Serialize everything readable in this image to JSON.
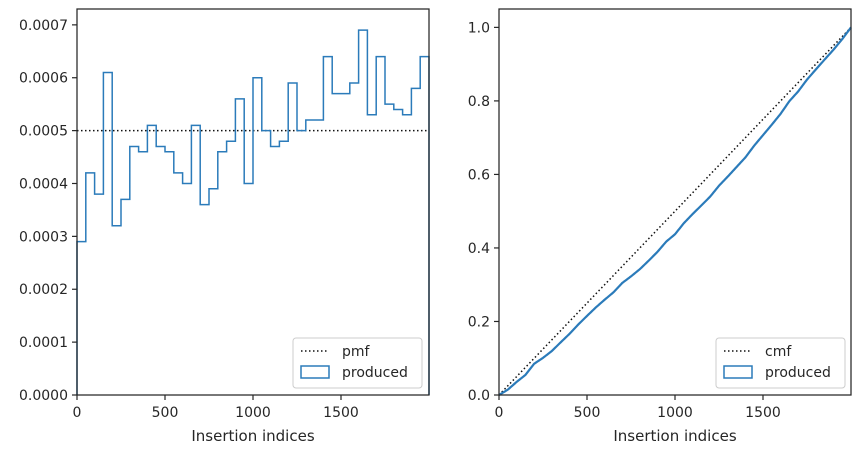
{
  "chart_data": [
    {
      "type": "histogram-step",
      "xlabel": "Insertion indices",
      "ylabel": "",
      "xlim": [
        0,
        2000
      ],
      "ylim": [
        0,
        0.00073
      ],
      "x_ticks": [
        0,
        500,
        1000,
        1500
      ],
      "y_ticks": [
        0,
        0.0001,
        0.0002,
        0.0003,
        0.0004,
        0.0005,
        0.0006,
        0.0007
      ],
      "y_tick_labels": [
        "0.0000",
        "0.0001",
        "0.0002",
        "0.0003",
        "0.0004",
        "0.0005",
        "0.0006",
        "0.0007"
      ],
      "bin_width": 50,
      "series": [
        {
          "name": "produced",
          "style": "step",
          "color": "#2b7bba",
          "bin_edges_start": 0,
          "values": [
            0.00029,
            0.00042,
            0.00038,
            0.00061,
            0.00032,
            0.00037,
            0.00047,
            0.00046,
            0.00051,
            0.00047,
            0.00046,
            0.00042,
            0.0004,
            0.00051,
            0.00036,
            0.00039,
            0.00046,
            0.00048,
            0.00056,
            0.0004,
            0.0006,
            0.0005,
            0.00047,
            0.00048,
            0.00059,
            0.0005,
            0.00052,
            0.00052,
            0.00064,
            0.00057,
            0.00057,
            0.00059,
            0.00069,
            0.00053,
            0.00064,
            0.00055,
            0.00054,
            0.00053,
            0.00058,
            0.00064
          ]
        },
        {
          "name": "pmf",
          "style": "dotted",
          "color": "#111111",
          "value": 0.0005
        }
      ],
      "legend": {
        "placement": "lower right",
        "entries": [
          "pmf",
          "produced"
        ]
      }
    },
    {
      "type": "line",
      "xlabel": "Insertion indices",
      "ylabel": "",
      "xlim": [
        0,
        2000
      ],
      "ylim": [
        0,
        1.05
      ],
      "x_ticks": [
        0,
        500,
        1000,
        1500
      ],
      "y_ticks": [
        0,
        0.2,
        0.4,
        0.6,
        0.8,
        1.0
      ],
      "y_tick_labels": [
        "0.0",
        "0.2",
        "0.4",
        "0.6",
        "0.8",
        "1.0"
      ],
      "series": [
        {
          "name": "cmf",
          "style": "dotted",
          "color": "#111111",
          "points": [
            [
              0,
              0
            ],
            [
              2000,
              1.0
            ]
          ]
        },
        {
          "name": "produced",
          "style": "step",
          "color": "#2b7bba",
          "derived_from_left_histogram": true
        }
      ],
      "legend": {
        "placement": "lower right",
        "entries": [
          "cmf",
          "produced"
        ]
      }
    }
  ],
  "colors": {
    "series": "#2b7bba",
    "reference": "#111111",
    "axes": "#262626"
  },
  "legend_left": {
    "ref_label": "pmf",
    "hist_label": "produced"
  },
  "legend_right": {
    "ref_label": "cmf",
    "hist_label": "produced"
  },
  "left_xlabel": "Insertion indices",
  "right_xlabel": "Insertion indices"
}
